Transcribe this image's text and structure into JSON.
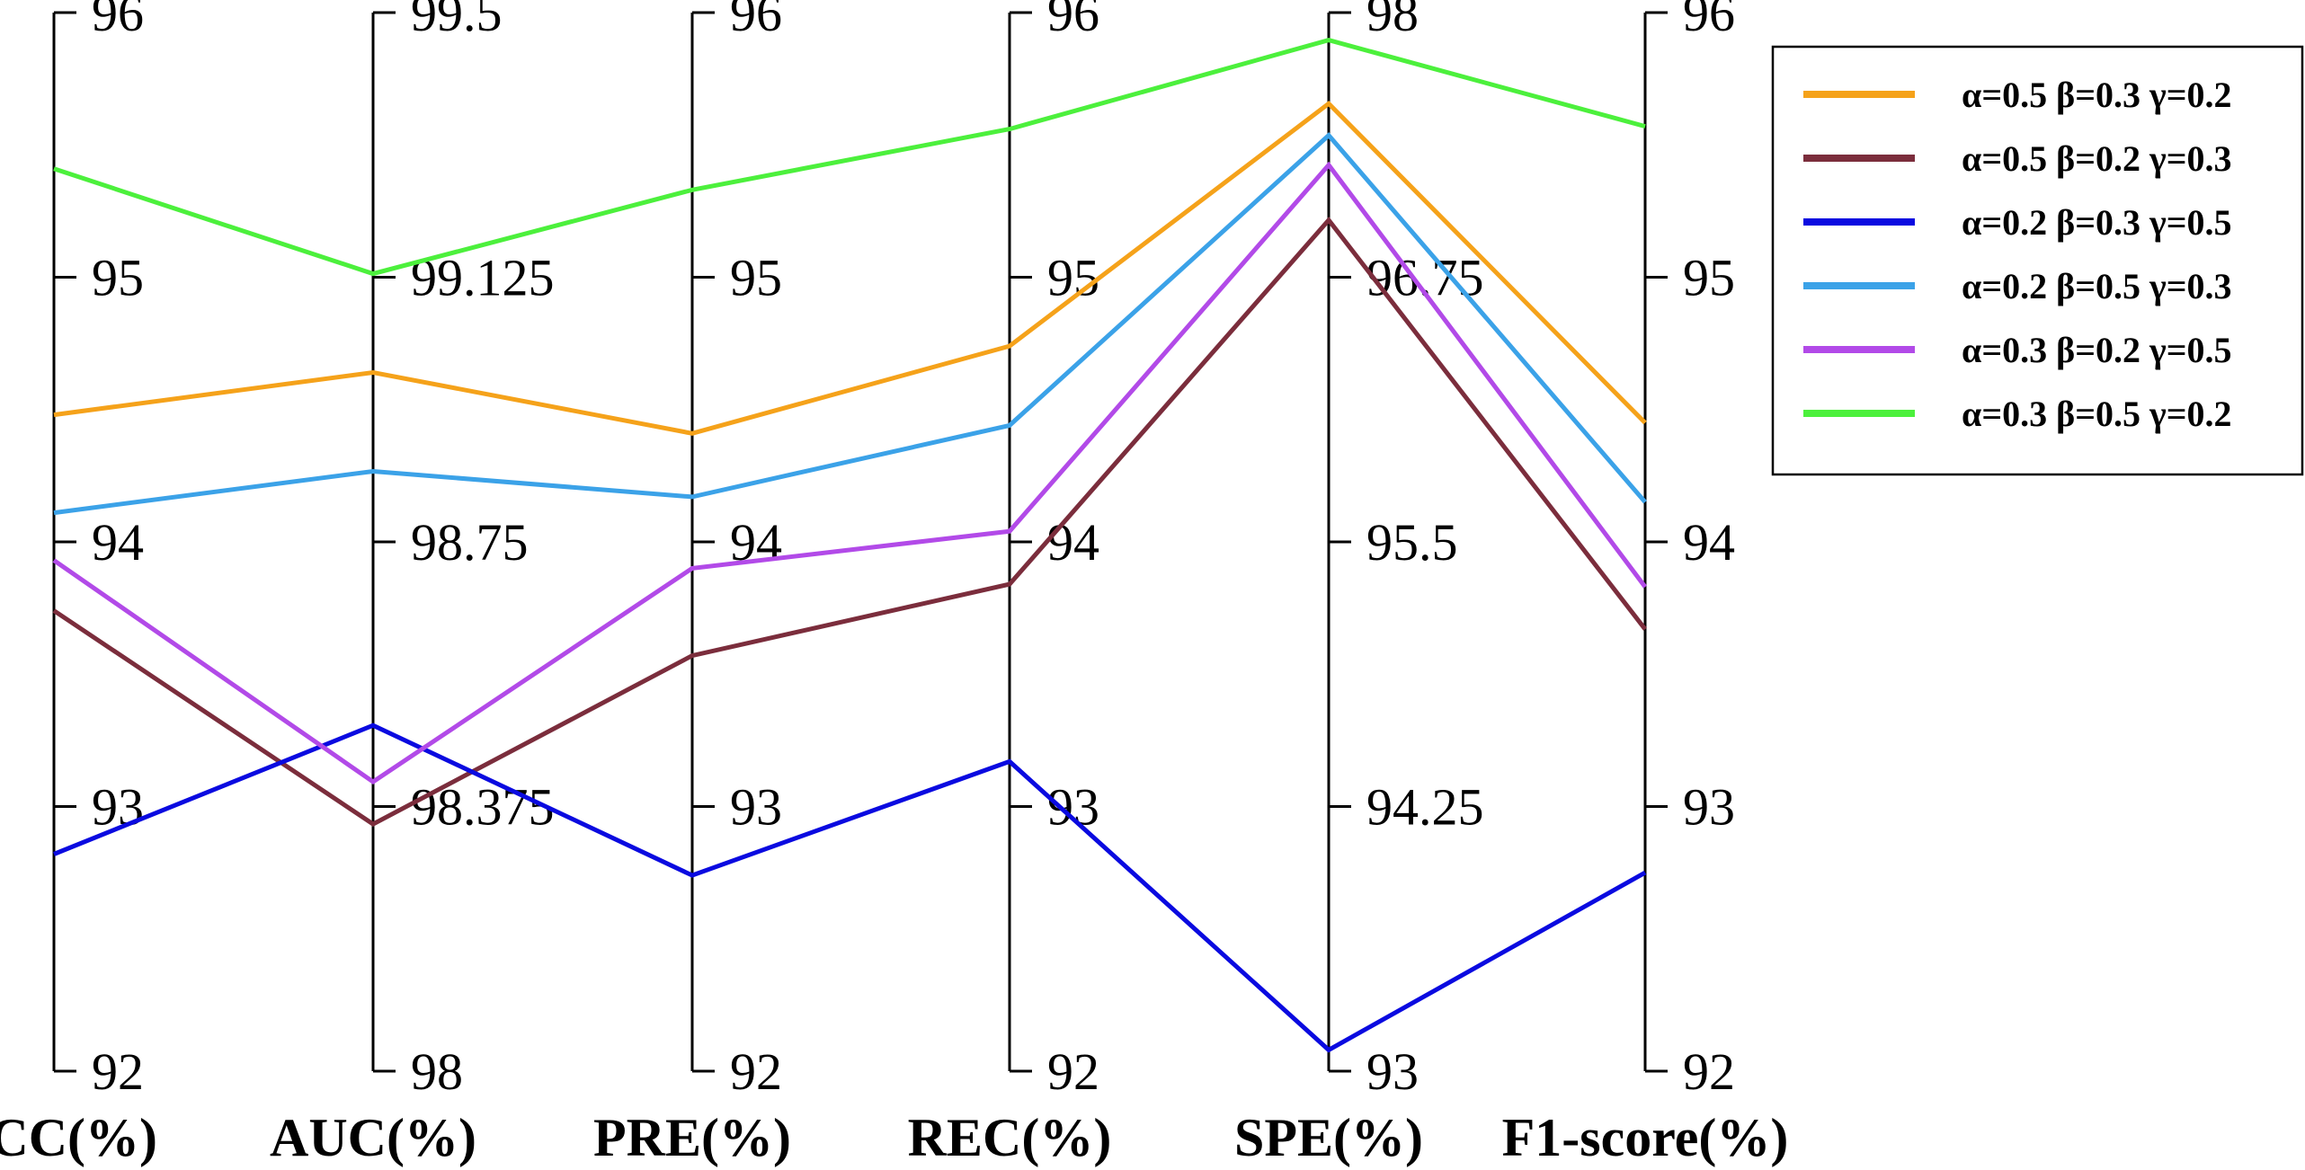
{
  "chart_data": {
    "type": "parallel-coordinates",
    "axes": [
      {
        "name": "ACC(%)",
        "range": [
          92,
          96
        ],
        "ticks": [
          "92",
          "93",
          "94",
          "95",
          "96"
        ]
      },
      {
        "name": "AUC(%)",
        "range": [
          98,
          99.5
        ],
        "ticks": [
          "98",
          "98.375",
          "98.75",
          "99.125",
          "99.5"
        ]
      },
      {
        "name": "PRE(%)",
        "range": [
          92,
          96
        ],
        "ticks": [
          "92",
          "93",
          "94",
          "95",
          "96"
        ]
      },
      {
        "name": "REC(%)",
        "range": [
          92,
          96
        ],
        "ticks": [
          "92",
          "93",
          "94",
          "95",
          "96"
        ]
      },
      {
        "name": "SPE(%)",
        "range": [
          93,
          98
        ],
        "ticks": [
          "93",
          "94.25",
          "95.5",
          "96.75",
          "98"
        ]
      },
      {
        "name": "F1-score(%)",
        "range": [
          92,
          96
        ],
        "ticks": [
          "92",
          "93",
          "94",
          "95",
          "96"
        ]
      }
    ],
    "series": [
      {
        "name": "α=0.5 β=0.3 γ=0.2",
        "color": "#f5a21a",
        "values": [
          94.48,
          98.99,
          94.41,
          94.74,
          97.57,
          94.45
        ]
      },
      {
        "name": "α=0.5 β=0.2 γ=0.3",
        "color": "#7b2d3c",
        "values": [
          93.74,
          98.35,
          93.57,
          93.84,
          97.02,
          93.67
        ]
      },
      {
        "name": "α=0.2 β=0.3 γ=0.5",
        "color": "#0a0ae0",
        "values": [
          92.82,
          98.49,
          92.74,
          93.17,
          93.1,
          92.75
        ]
      },
      {
        "name": "α=0.2 β=0.5 γ=0.3",
        "color": "#3ba2e8",
        "values": [
          94.11,
          98.85,
          94.17,
          94.44,
          97.42,
          94.15
        ]
      },
      {
        "name": "α=0.3 β=0.2 γ=0.5",
        "color": "#b24ae8",
        "values": [
          93.93,
          98.41,
          93.9,
          94.04,
          97.28,
          93.83
        ]
      },
      {
        "name": "α=0.3 β=0.5 γ=0.2",
        "color": "#4cf03c",
        "values": [
          95.41,
          99.13,
          95.33,
          95.56,
          97.87,
          95.57
        ]
      }
    ],
    "legend_position": "top-right",
    "grid": false
  }
}
